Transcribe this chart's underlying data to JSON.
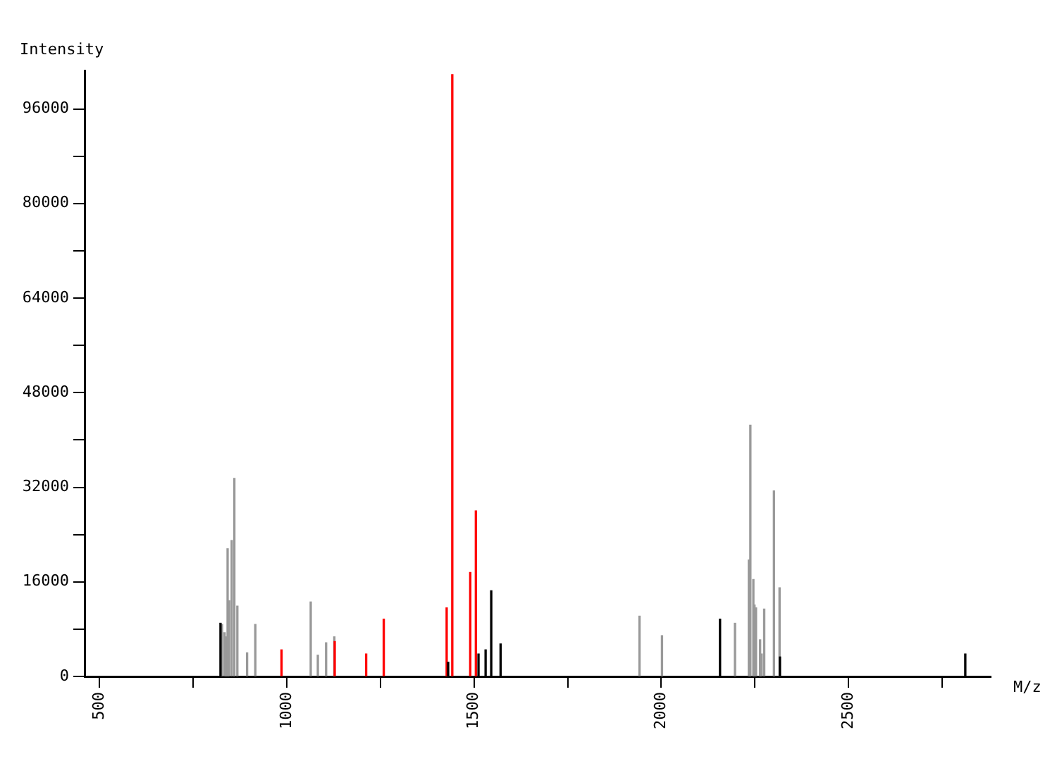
{
  "chart_data": {
    "type": "bar",
    "xlabel": "M/z",
    "ylabel": "Intensity",
    "xlim": [
      460,
      2880
    ],
    "xticks": [
      500,
      {
        "value": 750,
        "label": null
      },
      1000,
      {
        "value": 1250,
        "label": null
      },
      1500,
      {
        "value": 1750,
        "label": null
      },
      2000,
      {
        "value": 2250,
        "label": null
      },
      2500,
      {
        "value": 2750,
        "label": null
      }
    ],
    "ylim": [
      0,
      102500
    ],
    "yticks": [
      0,
      {
        "value": 8000,
        "label": null
      },
      16000,
      {
        "value": 24000,
        "label": null
      },
      32000,
      {
        "value": 40000,
        "label": null
      },
      48000,
      {
        "value": 56000,
        "label": null
      },
      64000,
      {
        "value": 72000,
        "label": null
      },
      80000,
      {
        "value": 88000,
        "label": null
      },
      96000
    ],
    "grid": false,
    "legend": false,
    "series": [
      {
        "color": "#999999",
        "x": [
          827,
          834,
          838,
          842,
          846,
          853,
          860,
          868,
          894,
          916,
          1064,
          1083,
          1105,
          1127,
          1942,
          2002,
          2197,
          2234,
          2238,
          2246,
          2249,
          2253,
          2264,
          2268,
          2275,
          2301,
          2316
        ],
        "values": [
          8800,
          7400,
          6700,
          21600,
          12800,
          23000,
          33500,
          11900,
          4000,
          8800,
          12600,
          3600,
          5700,
          6700,
          10200,
          6900,
          9000,
          19700,
          42500,
          16400,
          12100,
          11600,
          6200,
          3800,
          11400,
          31400,
          15000
        ]
      },
      {
        "color": "#ff0000",
        "x": [
          986,
          1128,
          1212,
          1259,
          1427,
          1442,
          1490,
          1505
        ],
        "values": [
          4500,
          5900,
          3800,
          9700,
          11600,
          101800,
          17600,
          28000
        ]
      },
      {
        "color": "#000000",
        "x": [
          823,
          1431,
          1512,
          1531,
          1546,
          1571,
          2157,
          2317,
          2812
        ],
        "values": [
          9000,
          2400,
          3800,
          4500,
          14500,
          5500,
          9700,
          3300,
          3800
        ]
      }
    ]
  }
}
